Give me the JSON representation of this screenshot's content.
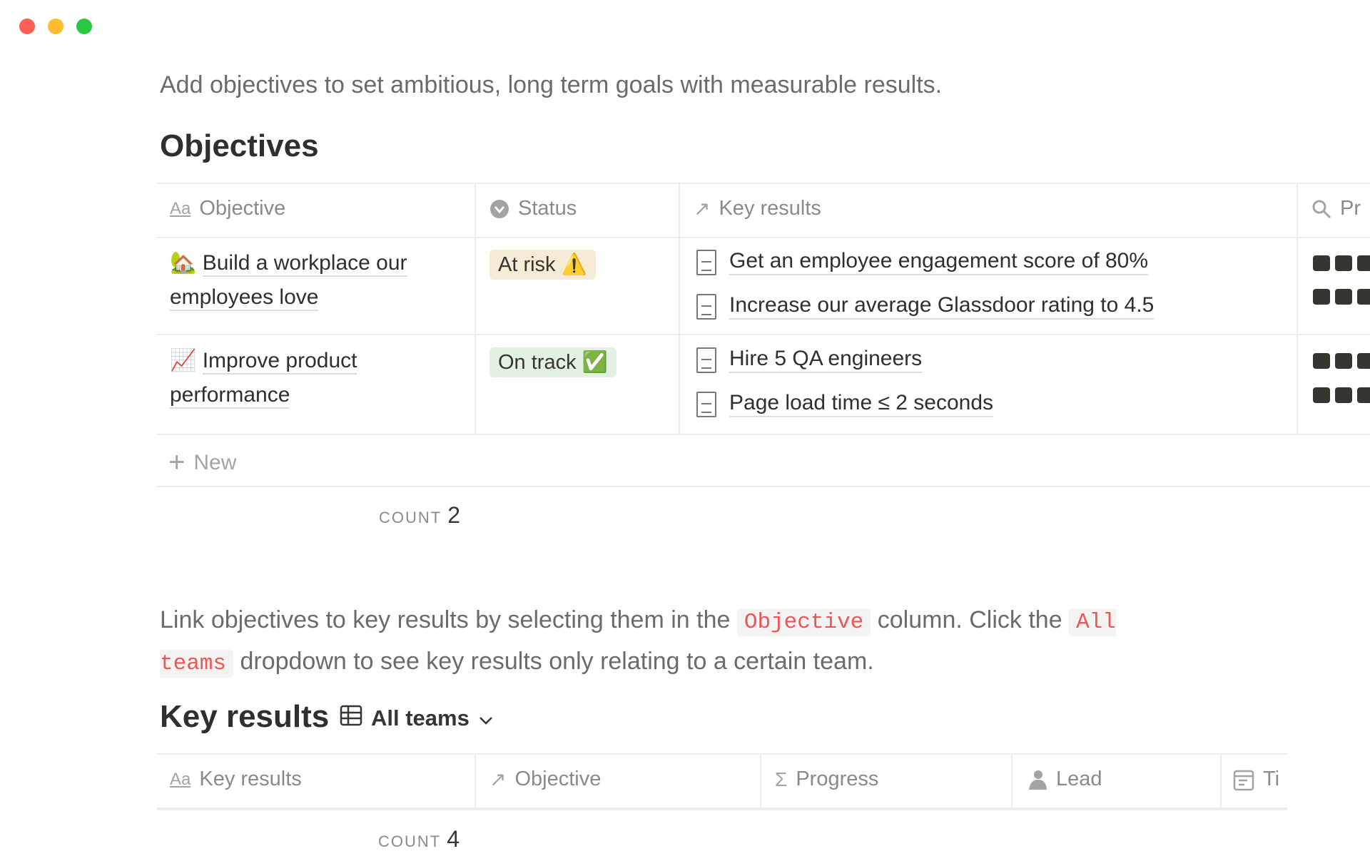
{
  "window": {
    "controls": [
      {
        "name": "close",
        "color": "#ff5f57"
      },
      {
        "name": "minimize",
        "color": "#febc2e"
      },
      {
        "name": "maximize",
        "color": "#28c840"
      }
    ]
  },
  "intro": "Add objectives to set ambitious, long term goals with measurable results.",
  "objectives": {
    "title": "Objectives",
    "columns": [
      {
        "label": "Objective",
        "icon": "text-aa-icon"
      },
      {
        "label": "Status",
        "icon": "status-icon"
      },
      {
        "label": "Key results",
        "icon": "relation-arrow-icon"
      },
      {
        "label": "Pr",
        "icon": "search-icon"
      }
    ],
    "rows": [
      {
        "emoji": "🏡",
        "title": "Build a workplace our employees love",
        "status": "At risk",
        "status_emoji": "⚠️",
        "status_color": "#f5ebd6",
        "key_results": [
          "Get an employee engagement score of 80%",
          "Increase our average Glassdoor rating to 4.5"
        ]
      },
      {
        "emoji": "📈",
        "title": "Improve product performance",
        "status": "On track",
        "status_emoji": "✅",
        "status_color": "#e3f1e4",
        "key_results": [
          "Hire 5 QA engineers",
          "Page load time ≤ 2 seconds"
        ]
      }
    ],
    "new_label": "New",
    "count_label": "COUNT",
    "count": "2"
  },
  "instructions": {
    "p1": "Link objectives to key results by selecting them in the ",
    "code1": "Objective",
    "p2": " column. Click the ",
    "code2": "All teams",
    "p3": " dropdown to see key results only relating to a certain team."
  },
  "key_results": {
    "title": "Key results",
    "view_label": "All teams",
    "columns": [
      {
        "label": "Key results",
        "icon": "text-aa-icon"
      },
      {
        "label": "Objective",
        "icon": "relation-arrow-icon"
      },
      {
        "label": "Progress",
        "icon": "sigma-icon"
      },
      {
        "label": "Lead",
        "icon": "person-icon"
      },
      {
        "label": "Ti",
        "icon": "calendar-icon"
      }
    ],
    "count_label": "COUNT",
    "count": "4"
  }
}
